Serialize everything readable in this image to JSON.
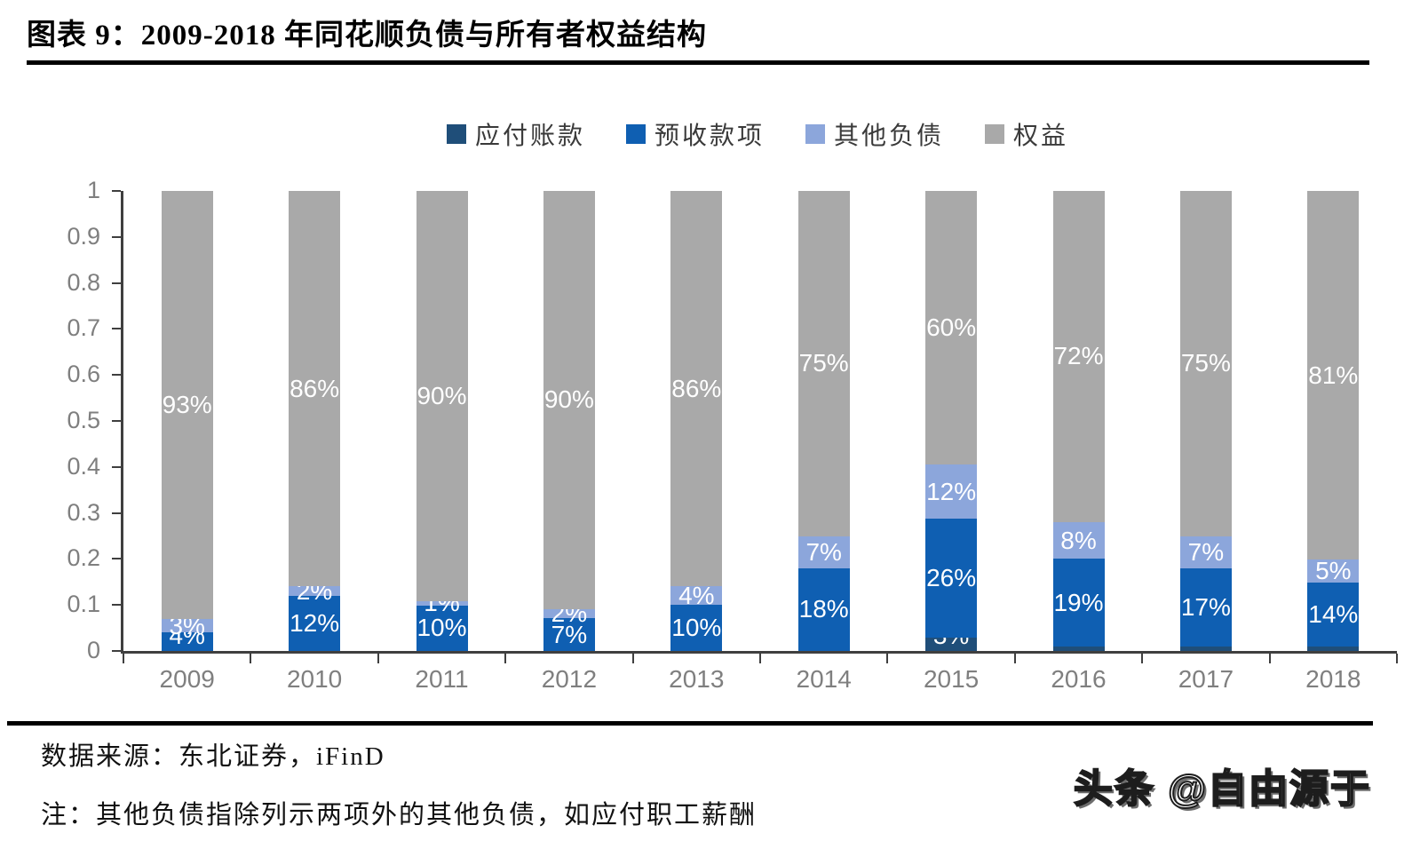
{
  "title": "图表 9：2009-2018 年同花顺负债与所有者权益结构",
  "chart_data": {
    "type": "bar",
    "subtype": "stacked-100-percent",
    "title": "图表 9：2009-2018 年同花顺负债与所有者权益结构",
    "categories": [
      "2009",
      "2010",
      "2011",
      "2012",
      "2013",
      "2014",
      "2015",
      "2016",
      "2017",
      "2018"
    ],
    "series": [
      {
        "name": "应付账款",
        "color": "#1F4E79",
        "values": [
          0,
          0,
          0,
          0,
          0,
          0,
          3,
          1,
          1,
          1
        ]
      },
      {
        "name": "预收款项",
        "color": "#0F5FB2",
        "values": [
          4,
          12,
          10,
          7,
          10,
          18,
          26,
          19,
          17,
          14
        ]
      },
      {
        "name": "其他负债",
        "color": "#8CA6DB",
        "values": [
          3,
          2,
          1,
          2,
          4,
          7,
          12,
          8,
          7,
          5
        ]
      },
      {
        "name": "权益",
        "color": "#A9A9A9",
        "values": [
          93,
          86,
          90,
          90,
          86,
          75,
          60,
          72,
          75,
          81
        ]
      }
    ],
    "value_label_suffix": "%",
    "value_label_color": "#ffffff",
    "ylim": [
      0,
      1
    ],
    "ytick_labels": [
      "0",
      "0.1",
      "0.2",
      "0.3",
      "0.4",
      "0.5",
      "0.6",
      "0.7",
      "0.8",
      "0.9",
      "1"
    ],
    "grid": false,
    "legend_position": "top",
    "axis_color": "#3f3f3f",
    "tick_label_color": "#7f7f7f"
  },
  "footer": {
    "source_label": "数据来源：东北证券，iFinD",
    "note": "注：其他负债指除列示两项外的其他负债，如应付职工薪酬"
  },
  "watermark": "头条 @自由源于"
}
